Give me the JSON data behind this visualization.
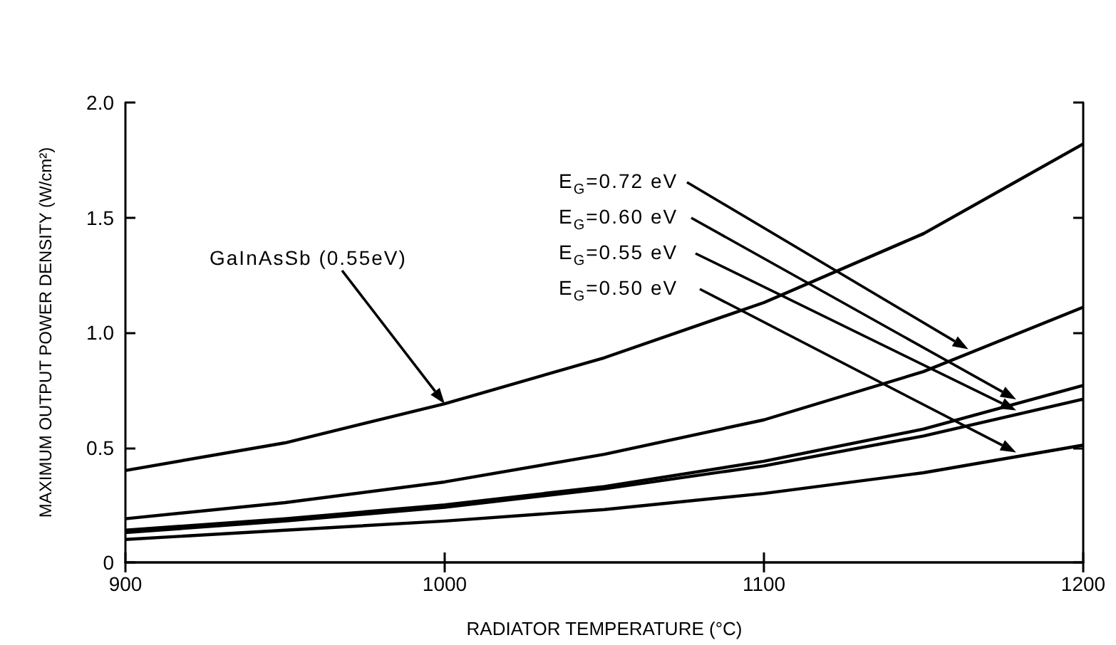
{
  "chart_data": {
    "type": "line",
    "xlabel": "RADIATOR TEMPERATURE (°C)",
    "ylabel": "MAXIMUM OUTPUT POWER DENSITY (W/cm²)",
    "x": [
      900,
      950,
      1000,
      1050,
      1100,
      1150,
      1200
    ],
    "series": [
      {
        "color": "#000000",
        "values": [
          0.4,
          0.52,
          0.69,
          0.89,
          1.13,
          1.43,
          1.82
        ]
      },
      {
        "name": "E$_{G}$=0.72 eV",
        "color": "#000000",
        "values": [
          0.19,
          0.26,
          0.35,
          0.47,
          0.62,
          0.83,
          1.11
        ]
      },
      {
        "name": "E$_{G}$=0.60 eV",
        "color": "#000000",
        "values": [
          0.14,
          0.19,
          0.25,
          0.33,
          0.44,
          0.58,
          0.77
        ]
      },
      {
        "name": "E$_{G}$=0.55 eV",
        "color": "#000000",
        "values": [
          0.13,
          0.18,
          0.24,
          0.32,
          0.42,
          0.55,
          0.71
        ]
      },
      {
        "name": "E$_{G}$=0.50 eV",
        "color": "#000000",
        "values": [
          0.1,
          0.14,
          0.18,
          0.23,
          0.3,
          0.39,
          0.51
        ]
      }
    ],
    "xlim": [
      900,
      1200
    ],
    "xticks": [
      900,
      1000,
      1100,
      1200
    ],
    "ylim": [
      0,
      2
    ],
    "yticks": [
      0,
      0.5,
      {
        "value": 1,
        "label": "1.0"
      },
      1.5,
      {
        "value": 2,
        "label": "2.0"
      }
    ],
    "annotations": [
      "GaInAsSb (0.55eV)"
    ],
    "marker": "none",
    "line_style": "solid",
    "grid": false,
    "legend": false
  }
}
